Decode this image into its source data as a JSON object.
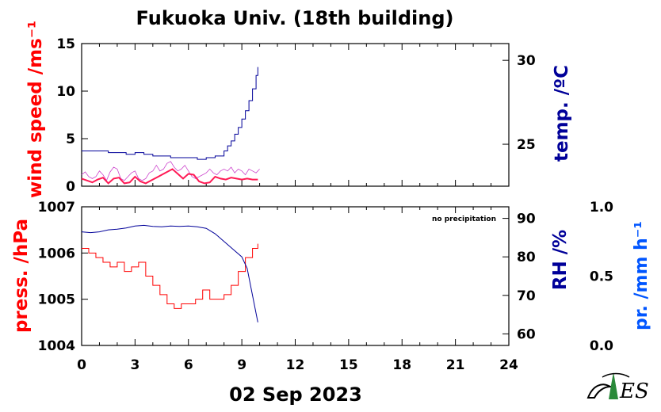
{
  "title": "Fukuoka Univ. (18th building)",
  "date_label": "02 Sep 2023",
  "note": "no precipitation",
  "colors": {
    "red": "#ff0000",
    "navy": "#000099",
    "blue": "#0055ff",
    "pink": "#cc44cc",
    "crimson": "#ff1a55"
  },
  "chart_data": [
    {
      "type": "line",
      "panel": "top",
      "x_range": [
        0,
        24
      ],
      "y_left": {
        "label": "wind speed /ms⁻¹",
        "range": [
          0,
          15
        ],
        "ticks": [
          "0",
          "5",
          "10",
          "15"
        ]
      },
      "y_right": {
        "label": "temp. /ºC",
        "range": [
          22.5,
          31
        ],
        "ticks": [
          "25",
          "30"
        ]
      },
      "series": [
        {
          "axis": "left",
          "style": "wind-gust",
          "x": [
            0,
            0.2,
            0.4,
            0.6,
            0.8,
            1,
            1.2,
            1.4,
            1.6,
            1.8,
            2,
            2.2,
            2.4,
            2.6,
            2.8,
            3,
            3.2,
            3.4,
            3.6,
            3.8,
            4,
            4.2,
            4.4,
            4.6,
            4.8,
            5,
            5.2,
            5.4,
            5.6,
            5.8,
            6,
            6.2,
            6.4,
            6.6,
            6.8,
            7,
            7.2,
            7.4,
            7.6,
            7.8,
            8,
            8.2,
            8.4,
            8.6,
            8.8,
            9,
            9.2,
            9.4,
            9.6,
            9.8,
            10
          ],
          "y": [
            1.2,
            1.5,
            1.0,
            0.8,
            1.0,
            1.6,
            1.2,
            0.6,
            1.5,
            2.0,
            1.8,
            0.8,
            0.6,
            1.0,
            1.4,
            1.6,
            0.8,
            0.6,
            0.8,
            1.4,
            1.6,
            2.2,
            1.6,
            1.8,
            2.4,
            2.6,
            2.0,
            1.6,
            1.8,
            2.2,
            1.6,
            1.0,
            0.8,
            1.0,
            1.2,
            1.4,
            1.8,
            1.4,
            1.2,
            1.6,
            1.8,
            1.6,
            2.0,
            1.4,
            1.8,
            1.6,
            1.2,
            1.8,
            1.6,
            1.4,
            1.8
          ]
        },
        {
          "axis": "left",
          "style": "wind-mean",
          "x": [
            0,
            0.3,
            0.6,
            0.9,
            1.2,
            1.5,
            1.8,
            2.1,
            2.4,
            2.7,
            3,
            3.3,
            3.6,
            3.9,
            4.2,
            4.5,
            4.8,
            5.1,
            5.4,
            5.7,
            6,
            6.3,
            6.6,
            6.9,
            7.2,
            7.5,
            7.8,
            8.1,
            8.4,
            8.7,
            9,
            9.3,
            9.6,
            9.9
          ],
          "y": [
            0.8,
            0.6,
            0.4,
            0.7,
            0.9,
            0.3,
            0.8,
            0.9,
            0.3,
            0.4,
            1.0,
            0.5,
            0.3,
            0.6,
            0.9,
            1.2,
            1.5,
            1.8,
            1.3,
            0.8,
            1.3,
            1.2,
            0.5,
            0.3,
            0.4,
            1.0,
            0.8,
            0.7,
            0.9,
            0.8,
            0.7,
            0.8,
            0.7,
            0.7
          ]
        },
        {
          "axis": "right",
          "style": "temp",
          "x": [
            0,
            0.5,
            1,
            1.5,
            2,
            2.5,
            3,
            3.5,
            4,
            4.5,
            5,
            5.5,
            6,
            6.5,
            7,
            7.5,
            8,
            8.2,
            8.4,
            8.6,
            8.8,
            9,
            9.2,
            9.4,
            9.6,
            9.8,
            9.9
          ],
          "y": [
            24.6,
            24.6,
            24.6,
            24.5,
            24.5,
            24.4,
            24.5,
            24.4,
            24.3,
            24.3,
            24.2,
            24.2,
            24.2,
            24.1,
            24.2,
            24.3,
            24.6,
            24.9,
            25.2,
            25.6,
            26.0,
            26.5,
            27.0,
            27.6,
            28.3,
            29.1,
            29.6
          ]
        }
      ]
    },
    {
      "type": "line",
      "panel": "bottom",
      "x_range": [
        0,
        24
      ],
      "x_ticks": [
        "0",
        "3",
        "6",
        "9",
        "12",
        "15",
        "18",
        "21",
        "24"
      ],
      "y_left": {
        "label": "press. /hPa",
        "range": [
          1004,
          1007
        ],
        "ticks": [
          "1004",
          "1005",
          "1006",
          "1007"
        ]
      },
      "y_right": {
        "label": "RH /%",
        "range": [
          57,
          93
        ],
        "ticks": [
          "60",
          "70",
          "80",
          "90"
        ]
      },
      "y_far_right": {
        "label": "pr. /mm h⁻¹",
        "range": [
          0,
          1
        ],
        "ticks": [
          "0.0",
          "0.5",
          "1.0"
        ]
      },
      "series": [
        {
          "axis": "left",
          "style": "pressure",
          "x": [
            0,
            0.4,
            0.8,
            1.2,
            1.6,
            2,
            2.4,
            2.8,
            3.2,
            3.6,
            4,
            4.4,
            4.8,
            5.2,
            5.6,
            6,
            6.4,
            6.8,
            7.2,
            7.6,
            8,
            8.4,
            8.8,
            9.2,
            9.6,
            9.9
          ],
          "y": [
            1006.1,
            1006.0,
            1005.9,
            1005.8,
            1005.7,
            1005.8,
            1005.6,
            1005.7,
            1005.8,
            1005.5,
            1005.3,
            1005.1,
            1004.9,
            1004.8,
            1004.9,
            1004.9,
            1005.0,
            1005.2,
            1005.0,
            1005.0,
            1005.1,
            1005.3,
            1005.6,
            1005.9,
            1006.1,
            1006.2
          ]
        },
        {
          "axis": "right",
          "style": "rh",
          "x": [
            0,
            0.5,
            1,
            1.5,
            2,
            2.5,
            3,
            3.5,
            4,
            4.5,
            5,
            5.5,
            6,
            6.5,
            7,
            7.5,
            8,
            8.5,
            9,
            9.3,
            9.6,
            9.9
          ],
          "y": [
            86.5,
            86.3,
            86.5,
            87.0,
            87.2,
            87.5,
            88.0,
            88.2,
            87.9,
            87.8,
            88.0,
            87.9,
            88.0,
            87.8,
            87.4,
            86.0,
            84.0,
            82.0,
            80.0,
            77.0,
            70.0,
            63.0
          ]
        }
      ]
    }
  ]
}
